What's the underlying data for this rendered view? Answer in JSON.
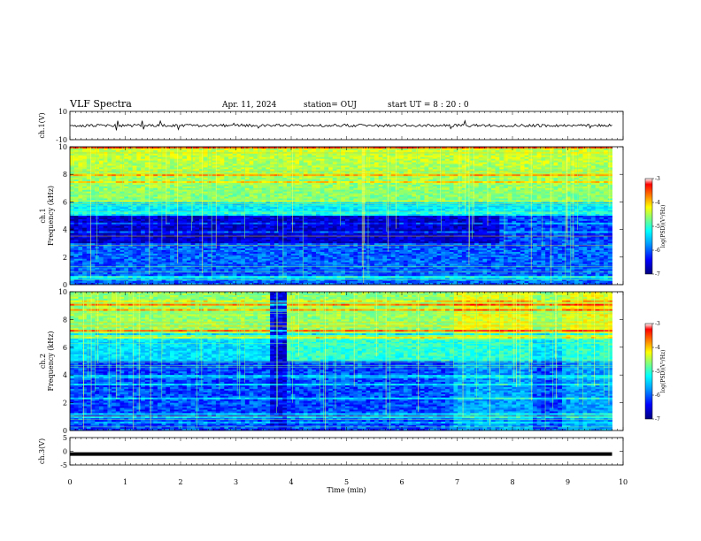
{
  "header": {
    "title": "VLF Spectra",
    "date": "Apr. 11, 2024",
    "station": "station= OUJ",
    "start_ut": "start  UT =  8 : 20 : 0"
  },
  "chart_data": {
    "type": "heatmap",
    "title": "VLF Spectra",
    "xlabel": "Time  (min)",
    "xlim": [
      0,
      10
    ],
    "x_ticks": [
      "0",
      "1",
      "2",
      "3",
      "4",
      "5",
      "6",
      "7",
      "8",
      "9",
      "10"
    ],
    "panels": [
      {
        "name": "ch.1 waveform",
        "type": "line",
        "ylabel": "ch.1(V)",
        "ylim": [
          -10,
          10
        ],
        "y_ticks": [
          "10",
          "-10"
        ],
        "baseline": 0,
        "data_end_min": 9.8
      },
      {
        "name": "ch.1 spectrogram",
        "type": "heatmap",
        "ylabel_channel": "ch.1",
        "ylabel": "Frequency  (kHz)",
        "ylim": [
          0,
          10
        ],
        "y_ticks": [
          "0",
          "2",
          "4",
          "6",
          "8",
          "10"
        ],
        "colorbar": {
          "label": "log(PSD)(V²/Hz)",
          "range": [
            -7,
            -3
          ],
          "ticks": [
            "-3",
            "-4",
            "-5",
            "-6",
            "-7"
          ]
        }
      },
      {
        "name": "ch.2 spectrogram",
        "type": "heatmap",
        "ylabel_channel": "ch.2",
        "ylabel": "Frequency  (kHz)",
        "ylim": [
          0,
          10
        ],
        "y_ticks": [
          "0",
          "2",
          "4",
          "6",
          "8",
          "10"
        ],
        "colorbar": {
          "label": "log(PSD)(V²/Hz)",
          "range": [
            -7,
            -3
          ],
          "ticks": [
            "-3",
            "-4",
            "-5",
            "-6",
            "-7"
          ]
        }
      },
      {
        "name": "ch.3 waveform",
        "type": "line",
        "ylabel": "ch.3(V)",
        "ylim": [
          -5,
          5
        ],
        "y_ticks": [
          "5",
          "0",
          "-5"
        ],
        "baseline": -1,
        "data_end_min": 9.8
      }
    ],
    "colormap": [
      "#00007f",
      "#0000ff",
      "#00a0ff",
      "#00ffff",
      "#7fff7f",
      "#ffff00",
      "#ff8000",
      "#ff0000",
      "#ffffff"
    ]
  }
}
